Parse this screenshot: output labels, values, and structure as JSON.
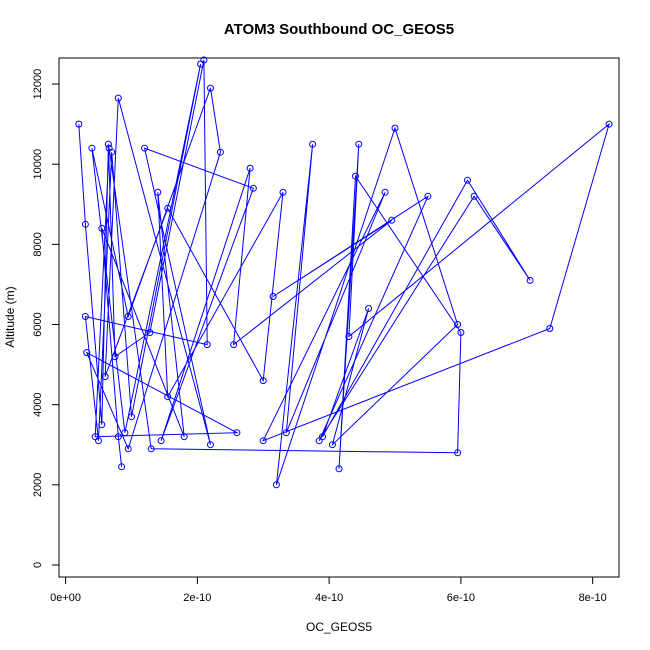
{
  "chart_data": {
    "type": "line",
    "title": "ATOM3 Southbound OC_GEOS5",
    "xlabel": "OC_GEOS5",
    "ylabel": "Altitude (m)",
    "xlim": [
      -1e-11,
      8.4e-10
    ],
    "ylim": [
      -300,
      12650
    ],
    "x_ticks": [
      0,
      2e-10,
      4e-10,
      6e-10,
      8e-10
    ],
    "x_tick_labels": [
      "0e+00",
      "2e-10",
      "4e-10",
      "6e-10",
      "8e-10"
    ],
    "y_ticks": [
      0,
      2000,
      4000,
      6000,
      8000,
      10000,
      12000
    ],
    "y_tick_labels": [
      "0",
      "2000",
      "4000",
      "6000",
      "8000",
      "10000",
      "12000"
    ],
    "grid": false,
    "line_color": "#0000ff",
    "marker": "open-circle",
    "series": [
      {
        "points": [
          [
            2e-11,
            11000
          ],
          [
            3e-11,
            8500
          ],
          [
            5.5e-11,
            3500
          ],
          [
            6.5e-11,
            10500
          ],
          [
            7.5e-11,
            5200
          ],
          [
            1.28e-10,
            5800
          ],
          [
            2.1e-10,
            12600
          ],
          [
            2.15e-10,
            5500
          ],
          [
            3e-11,
            6200
          ],
          [
            5e-11,
            3100
          ],
          [
            7e-11,
            10300
          ],
          [
            1e-10,
            3700
          ],
          [
            2.05e-10,
            12500
          ],
          [
            9e-11,
            3300
          ],
          [
            4e-11,
            10400
          ],
          [
            9.5e-11,
            6200
          ],
          [
            2.2e-10,
            11900
          ],
          [
            2.35e-10,
            10300
          ],
          [
            9.5e-11,
            2900
          ],
          [
            3.2e-11,
            5300
          ],
          [
            2.6e-10,
            3300
          ],
          [
            4.5e-11,
            3200
          ],
          [
            6.6e-11,
            10400
          ],
          [
            1.3e-10,
            2900
          ],
          [
            5.95e-10,
            2800
          ],
          [
            6e-10,
            5800
          ],
          [
            4.4e-10,
            9700
          ],
          [
            4.15e-10,
            2400
          ],
          [
            4.45e-10,
            10500
          ],
          [
            4.3e-10,
            5700
          ],
          [
            8.25e-10,
            11000
          ],
          [
            7.35e-10,
            5900
          ],
          [
            3e-10,
            3100
          ],
          [
            4.85e-10,
            9300
          ],
          [
            3.35e-10,
            3300
          ],
          [
            3.75e-10,
            10500
          ],
          [
            3.2e-10,
            2000
          ],
          [
            5e-10,
            10900
          ],
          [
            5.95e-10,
            6000
          ],
          [
            4.05e-10,
            3000
          ],
          [
            4.6e-10,
            6400
          ],
          [
            3.9e-10,
            3200
          ],
          [
            6.1e-10,
            9600
          ],
          [
            7.05e-10,
            7100
          ],
          [
            6.2e-10,
            9200
          ],
          [
            3.85e-10,
            3100
          ],
          [
            5.5e-10,
            9200
          ],
          [
            3.15e-10,
            6700
          ],
          [
            4.95e-10,
            8600
          ],
          [
            2.55e-10,
            5500
          ],
          [
            2.8e-10,
            9900
          ],
          [
            1.45e-10,
            3100
          ],
          [
            2.85e-10,
            9400
          ],
          [
            1.2e-10,
            10400
          ],
          [
            2.2e-10,
            3000
          ],
          [
            8e-11,
            11650
          ],
          [
            6e-11,
            4700
          ],
          [
            1.55e-10,
            8900
          ],
          [
            3e-10,
            4600
          ],
          [
            3.3e-10,
            9300
          ],
          [
            1.55e-10,
            4200
          ],
          [
            1.4e-10,
            9300
          ],
          [
            1.8e-10,
            3200
          ],
          [
            5.5e-11,
            8400
          ],
          [
            8e-11,
            3200
          ],
          [
            8.5e-11,
            2450
          ]
        ]
      }
    ]
  }
}
